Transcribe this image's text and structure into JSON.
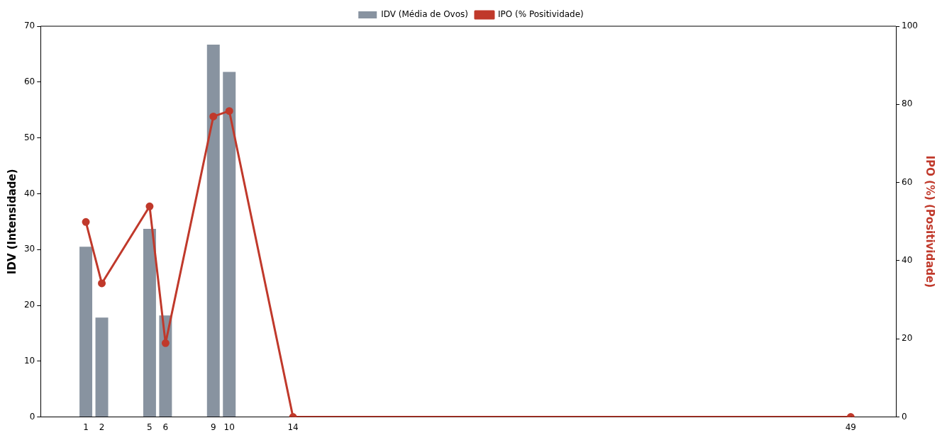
{
  "chart_data": {
    "type": "bar",
    "x": [
      1,
      2,
      5,
      6,
      9,
      10,
      14,
      49
    ],
    "series": [
      {
        "name": "IDV (Média de Ovos)",
        "color": "#8893a0",
        "values": [
          30.5,
          17.8,
          33.7,
          18.2,
          66.7,
          61.8,
          0,
          0
        ]
      },
      {
        "name": "IPO (% Positividade)",
        "type": "line",
        "axis": "y2",
        "color": "#c0392b",
        "marker": "circle",
        "values": [
          49.9,
          34.2,
          53.9,
          18.9,
          76.9,
          78.3,
          0,
          0
        ]
      }
    ],
    "xlim": [
      -1.84,
      51.84
    ],
    "xticks": [
      1,
      2,
      5,
      6,
      9,
      10,
      14,
      49
    ],
    "ylim": [
      0,
      70
    ],
    "yticks": [
      0,
      10,
      20,
      30,
      40,
      50,
      60,
      70
    ],
    "y2lim": [
      0,
      100
    ],
    "y2ticks": [
      0,
      20,
      40,
      60,
      80,
      100
    ],
    "ylabel": "IDV (Intensidade)",
    "y2label": "IPO (%) (Positividade)",
    "grid": false,
    "legend": "top"
  }
}
